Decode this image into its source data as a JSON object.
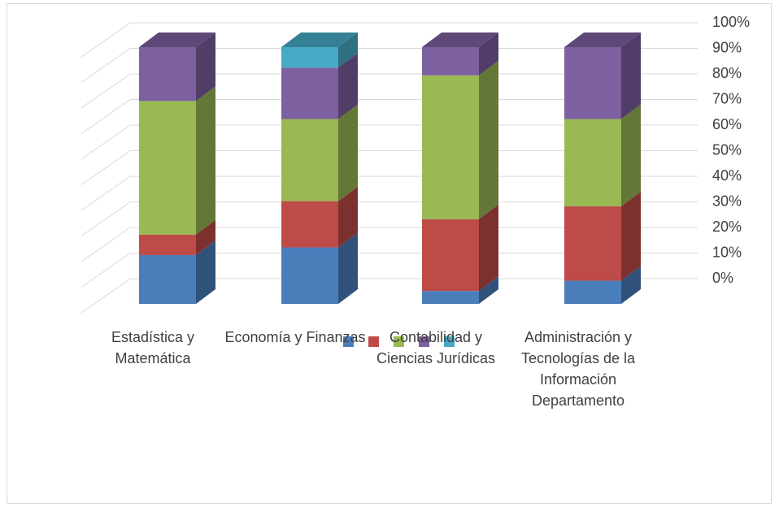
{
  "chart_data": {
    "type": "bar3d_stacked",
    "categories": [
      "Estadística y Matemática",
      "Economía y Finanzas",
      "Contabilidad y Ciencias Jurídicas",
      "Administración y Tecnologías de la Información Departamento"
    ],
    "series": [
      {
        "color": "#4a7ebb",
        "values": [
          19,
          22,
          5,
          9
        ]
      },
      {
        "color": "#be4b48",
        "values": [
          8,
          18,
          28,
          29
        ]
      },
      {
        "color": "#98b954",
        "values": [
          52,
          32,
          56,
          34
        ]
      },
      {
        "color": "#7d60a0",
        "values": [
          21,
          20,
          11,
          28
        ]
      },
      {
        "color": "#46aac5",
        "values": [
          0,
          8,
          0,
          0
        ]
      }
    ],
    "ylim": [
      0,
      100
    ],
    "yticks": [
      {
        "value": 0,
        "label": "0%"
      },
      {
        "value": 10,
        "label": "10%"
      },
      {
        "value": 20,
        "label": "20%"
      },
      {
        "value": 30,
        "label": "30%"
      },
      {
        "value": 40,
        "label": "40%"
      },
      {
        "value": 50,
        "label": "50%"
      },
      {
        "value": 60,
        "label": "60%"
      },
      {
        "value": 70,
        "label": "70%"
      },
      {
        "value": 80,
        "label": "80%"
      },
      {
        "value": 90,
        "label": "90%"
      },
      {
        "value": 100,
        "label": "100%"
      }
    ],
    "grid": true
  }
}
